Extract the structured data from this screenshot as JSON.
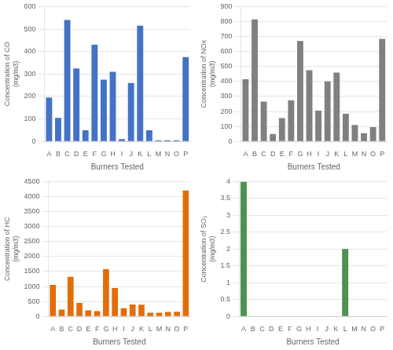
{
  "chart_data": [
    {
      "type": "bar",
      "categories": [
        "A",
        "B",
        "C",
        "D",
        "E",
        "F",
        "G",
        "H",
        "I",
        "J",
        "K",
        "L",
        "M",
        "N",
        "O",
        "P"
      ],
      "values": [
        195,
        105,
        540,
        325,
        50,
        430,
        275,
        310,
        10,
        260,
        515,
        50,
        5,
        5,
        5,
        375
      ],
      "color": "#4472C4",
      "xlabel": "Burners Tested",
      "ylabel": "Concentration of CO\n(mg/m3)",
      "ylim": [
        0,
        600
      ],
      "yticks": [
        0,
        100,
        200,
        300,
        400,
        500,
        600
      ],
      "grid": true
    },
    {
      "type": "bar",
      "categories": [
        "A",
        "B",
        "C",
        "D",
        "E",
        "F",
        "G",
        "H",
        "I",
        "J",
        "K",
        "L",
        "M",
        "N",
        "O",
        "P"
      ],
      "values": [
        415,
        815,
        265,
        50,
        155,
        275,
        670,
        475,
        205,
        400,
        460,
        185,
        110,
        55,
        95,
        685
      ],
      "color": "#808080",
      "xlabel": "Burners Tested",
      "ylabel": "Concentration of NOx\n(mg/m3)",
      "ylim": [
        0,
        900
      ],
      "yticks": [
        0,
        100,
        200,
        300,
        400,
        500,
        600,
        700,
        800,
        900
      ],
      "grid": true
    },
    {
      "type": "bar",
      "categories": [
        "A",
        "B",
        "C",
        "D",
        "E",
        "F",
        "G",
        "H",
        "I",
        "J",
        "K",
        "L",
        "M",
        "N",
        "O",
        "P"
      ],
      "values": [
        1050,
        225,
        1320,
        450,
        200,
        175,
        1575,
        950,
        275,
        400,
        390,
        125,
        120,
        150,
        155,
        4200
      ],
      "color": "#E36C09",
      "xlabel": "Burners Tested",
      "ylabel": "Concentration of HC\n(mg/m3)",
      "ylim": [
        0,
        4500
      ],
      "yticks": [
        0,
        500,
        1000,
        1500,
        2000,
        2500,
        3000,
        3500,
        4000,
        4500
      ],
      "grid": true
    },
    {
      "type": "bar",
      "categories": [
        "A",
        "B",
        "C",
        "D",
        "E",
        "F",
        "G",
        "H",
        "I",
        "J",
        "K",
        "L",
        "M",
        "N",
        "O",
        "P"
      ],
      "values": [
        4.0,
        0,
        0,
        0,
        0,
        0,
        0,
        0,
        0,
        0,
        0,
        2.0,
        0,
        0,
        0,
        0
      ],
      "color": "#4F9153",
      "xlabel": "Burners Tested",
      "ylabel": "Concentration of SO₂\n(mg/m3)",
      "ylim": [
        0,
        4
      ],
      "yticks": [
        0,
        0.5,
        1,
        1.5,
        2,
        2.5,
        3,
        3.5,
        4
      ],
      "grid": true
    }
  ]
}
